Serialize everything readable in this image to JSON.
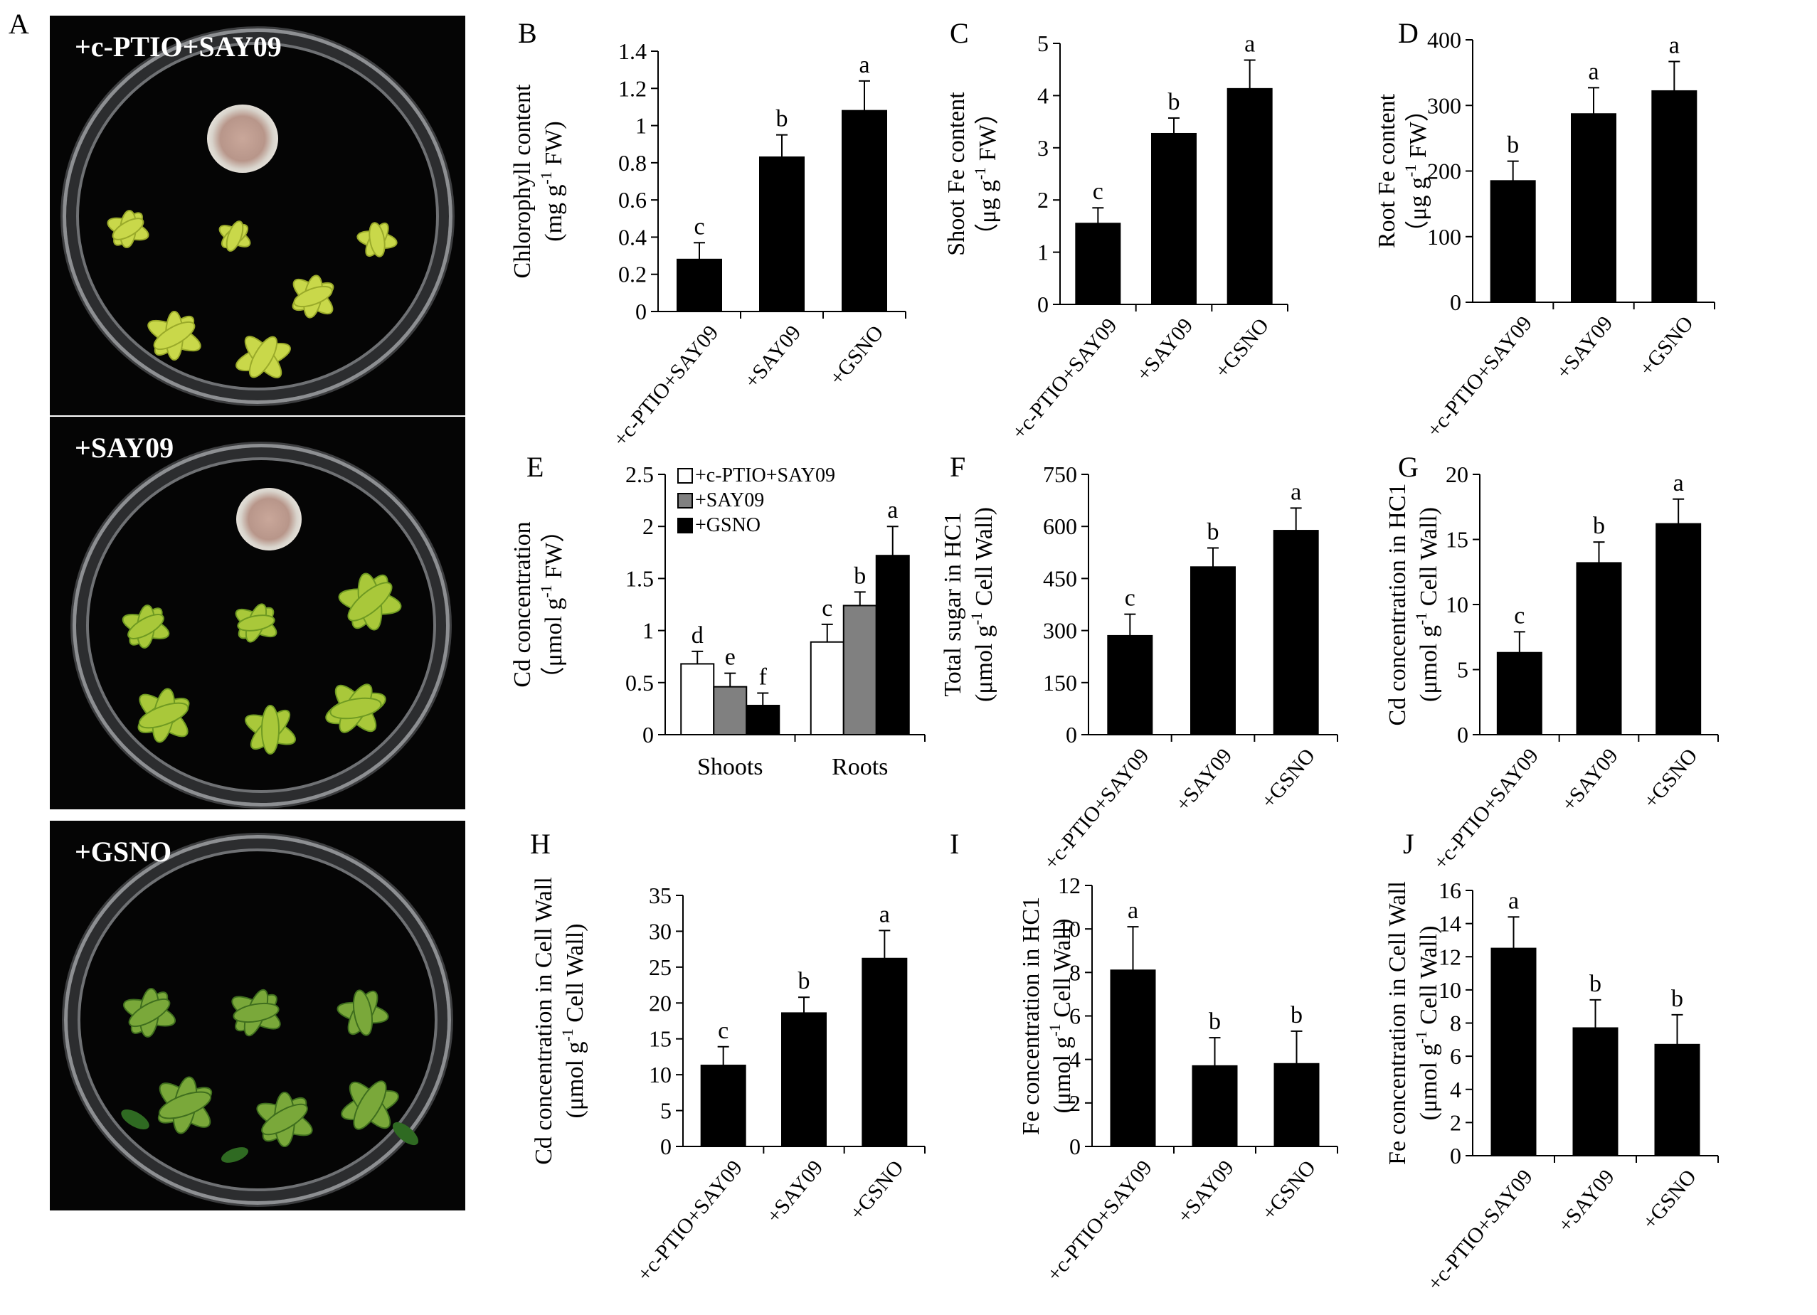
{
  "panel_a": {
    "letter": "A",
    "photos": [
      {
        "caption": "+c-PTIO+SAY09"
      },
      {
        "caption": "+SAY09"
      },
      {
        "caption": "+GSNO"
      }
    ]
  },
  "colors": {
    "black_bar": "#000000",
    "gray_bar": "#808080",
    "white_bar": "#ffffff",
    "axis": "#000000",
    "leaf_yellow": "#c9d84a",
    "leaf_green": "#3f8a2c",
    "photo_background": "#050505"
  },
  "chart_data": [
    {
      "panel": "B",
      "type": "bar",
      "categories": [
        "+c-PTIO+SAY09",
        "+SAY09",
        "+GSNO"
      ],
      "values": [
        0.28,
        0.83,
        1.08
      ],
      "errors": [
        0.09,
        0.12,
        0.16
      ],
      "letters": [
        "c",
        "b",
        "a"
      ],
      "ylabel_lines": [
        "Chlorophyll content",
        "(mg g-1 FW)"
      ],
      "ylim": [
        0,
        1.4
      ],
      "yticks": [
        "0",
        "0.2",
        "0.4",
        "0.6",
        "0.8",
        "1",
        "1.2",
        "1.4"
      ],
      "ytick_values": [
        0,
        0.2,
        0.4,
        0.6,
        0.8,
        1,
        1.2,
        1.4
      ]
    },
    {
      "panel": "C",
      "type": "bar",
      "categories": [
        "+c-PTIO+SAY09",
        "+SAY09",
        "+GSNO"
      ],
      "values": [
        1.55,
        3.27,
        4.13
      ],
      "errors": [
        0.3,
        0.3,
        0.55
      ],
      "letters": [
        "c",
        "b",
        "a"
      ],
      "ylabel_lines": [
        "Shoot Fe content",
        "（μg g-1 FW）"
      ],
      "ylim": [
        0,
        5
      ],
      "yticks": [
        "0",
        "1",
        "2",
        "3",
        "4",
        "5"
      ],
      "ytick_values": [
        0,
        1,
        2,
        3,
        4,
        5
      ]
    },
    {
      "panel": "D",
      "type": "bar",
      "categories": [
        "+c-PTIO+SAY09",
        "+SAY09",
        "+GSNO"
      ],
      "values": [
        185,
        287,
        322
      ],
      "errors": [
        30,
        40,
        45
      ],
      "letters": [
        "b",
        "a",
        "a"
      ],
      "ylabel_lines": [
        "Root Fe content",
        "（μg g-1 FW）"
      ],
      "ylim": [
        0,
        400
      ],
      "yticks": [
        "0",
        "100",
        "200",
        "300",
        "400"
      ],
      "ytick_values": [
        0,
        100,
        200,
        300,
        400
      ]
    },
    {
      "panel": "E",
      "type": "bar",
      "categories": [
        "Shoots",
        "Roots"
      ],
      "series": [
        {
          "name": "+c-PTIO+SAY09",
          "color": "#ffffff",
          "values": [
            0.68,
            0.89
          ],
          "errors": [
            0.12,
            0.17
          ],
          "letters": [
            "d",
            "c"
          ]
        },
        {
          "name": "+SAY09",
          "color": "#808080",
          "values": [
            0.46,
            1.24
          ],
          "errors": [
            0.13,
            0.13
          ],
          "letters": [
            "e",
            "b"
          ]
        },
        {
          "name": "+GSNO",
          "color": "#000000",
          "values": [
            0.28,
            1.72
          ],
          "errors": [
            0.12,
            0.28
          ],
          "letters": [
            "f",
            "a"
          ]
        }
      ],
      "ylabel_lines": [
        "Cd concentration",
        "（μmol g-1 FW）"
      ],
      "ylim": [
        0,
        2.5
      ],
      "yticks": [
        "0",
        "0.5",
        "1",
        "1.5",
        "2",
        "2.5"
      ],
      "ytick_values": [
        0,
        0.5,
        1,
        1.5,
        2,
        2.5
      ],
      "legend": "top-left"
    },
    {
      "panel": "F",
      "type": "bar",
      "categories": [
        "+c-PTIO+SAY09",
        "+SAY09",
        "+GSNO"
      ],
      "values": [
        285,
        483,
        588
      ],
      "errors": [
        62,
        55,
        65
      ],
      "letters": [
        "c",
        "b",
        "a"
      ],
      "ylabel_lines": [
        "Total sugar in HC1",
        "(μmol g-1 Cell Wall)"
      ],
      "ylim": [
        0,
        750
      ],
      "yticks": [
        "0",
        "150",
        "300",
        "450",
        "600",
        "750"
      ],
      "ytick_values": [
        0,
        150,
        300,
        450,
        600,
        750
      ]
    },
    {
      "panel": "G",
      "type": "bar",
      "categories": [
        "+c-PTIO+SAY09",
        "+SAY09",
        "+GSNO"
      ],
      "values": [
        6.3,
        13.2,
        16.2
      ],
      "errors": [
        1.6,
        1.6,
        1.9
      ],
      "letters": [
        "c",
        "b",
        "a"
      ],
      "ylabel_lines": [
        "Cd concentration in HC1",
        "(μmol g-1 Cell Wall)"
      ],
      "ylim": [
        0,
        20
      ],
      "yticks": [
        "0",
        "5",
        "10",
        "15",
        "20"
      ],
      "ytick_values": [
        0,
        5,
        10,
        15,
        20
      ]
    },
    {
      "panel": "H",
      "type": "bar",
      "categories": [
        "+c-PTIO+SAY09",
        "+SAY09",
        "+GSNO"
      ],
      "values": [
        11.3,
        18.6,
        26.2
      ],
      "errors": [
        2.6,
        2.2,
        3.9
      ],
      "letters": [
        "c",
        "b",
        "a"
      ],
      "ylabel_lines": [
        "Cd concentration in Cell Wall",
        "(μmol g-1 Cell Wall)"
      ],
      "ylim": [
        0,
        35
      ],
      "yticks": [
        "0",
        "5",
        "10",
        "15",
        "20",
        "25",
        "30",
        "35"
      ],
      "ytick_values": [
        0,
        5,
        10,
        15,
        20,
        25,
        30,
        35
      ]
    },
    {
      "panel": "I",
      "type": "bar",
      "categories": [
        "+c-PTIO+SAY09",
        "+SAY09",
        "+GSNO"
      ],
      "values": [
        8.1,
        3.7,
        3.8
      ],
      "errors": [
        2.0,
        1.3,
        1.5
      ],
      "letters": [
        "a",
        "b",
        "b"
      ],
      "ylabel_lines": [
        "Fe concentration in HC1",
        "(μmol g-1 Cell Wall)"
      ],
      "ylim": [
        0,
        12
      ],
      "yticks": [
        "0",
        "2",
        "4",
        "6",
        "8",
        "10",
        "12"
      ],
      "ytick_values": [
        0,
        2,
        4,
        6,
        8,
        10,
        12
      ]
    },
    {
      "panel": "J",
      "type": "bar",
      "categories": [
        "+c-PTIO+SAY09",
        "+SAY09",
        "+GSNO"
      ],
      "values": [
        12.5,
        7.7,
        6.7
      ],
      "errors": [
        1.9,
        1.7,
        1.8
      ],
      "letters": [
        "a",
        "b",
        "b"
      ],
      "ylabel_lines": [
        "Fe concentration in Cell Wall",
        "(μmol g-1 Cell Wall)"
      ],
      "ylim": [
        0,
        16
      ],
      "yticks": [
        "0",
        "2",
        "4",
        "6",
        "8",
        "10",
        "12",
        "14",
        "16"
      ],
      "ytick_values": [
        0,
        2,
        4,
        6,
        8,
        10,
        12,
        14,
        16
      ]
    }
  ]
}
